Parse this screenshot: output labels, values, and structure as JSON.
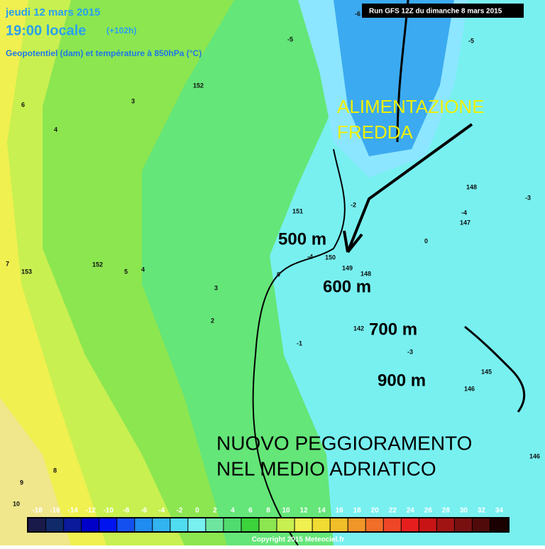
{
  "header": {
    "date": "jeudi 12 mars 2015",
    "time": "19:00 locale",
    "offset": "(+102h)",
    "field": "Geopotentiel (dam) et température à 850hPa (°C)",
    "run": "Run GFS 12Z du dimanche 8 mars 2015"
  },
  "annotations": {
    "feed": [
      "ALIMENTAZIONE",
      "FREDDA"
    ],
    "heights": [
      "500 m",
      "600 m",
      "700 m",
      "900 m"
    ],
    "headline": [
      "NUOVO PEGGIORAMENTO",
      "NEL MEDIO ADRIATICO"
    ]
  },
  "map_labels": [
    "153",
    "152",
    "151",
    "150",
    "149",
    "148",
    "147",
    "146",
    "145",
    "142",
    "5",
    "4",
    "3",
    "2",
    "0",
    "-1",
    "-2",
    "-3",
    "-4",
    "-5",
    "-6",
    "7",
    "8",
    "9",
    "10",
    "6",
    "152",
    "148",
    "146",
    "-3",
    "-5",
    "-4",
    "3",
    "4",
    "0"
  ],
  "colorbar": {
    "labels": [
      "-18",
      "-16",
      "-14",
      "-12",
      "-10",
      "-8",
      "-6",
      "-4",
      "-2",
      "0",
      "2",
      "4",
      "6",
      "8",
      "10",
      "12",
      "14",
      "16",
      "18",
      "20",
      "22",
      "24",
      "26",
      "28",
      "30",
      "32",
      "34"
    ],
    "colors": [
      "#1a1a4a",
      "#102a6a",
      "#0a1a9a",
      "#0000c8",
      "#0014f0",
      "#1450f0",
      "#1e8cf0",
      "#32b4f0",
      "#50dcf0",
      "#78f0f0",
      "#6ee6a0",
      "#50dc6e",
      "#3cd23c",
      "#8ce650",
      "#c8f050",
      "#f0f050",
      "#f0dc32",
      "#f0be28",
      "#f09628",
      "#f06e28",
      "#f04628",
      "#e61e1e",
      "#c81414",
      "#a01414",
      "#781010",
      "#500a0a",
      "#1a0000"
    ]
  },
  "copyright": "Copyright 2015 Meteociel.fr"
}
